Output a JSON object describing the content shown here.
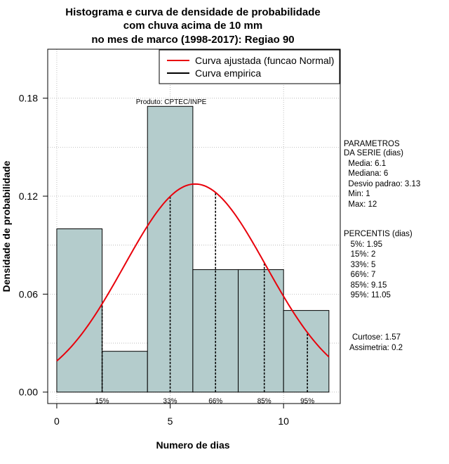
{
  "chart_data": {
    "type": "bar",
    "title_lines": [
      "Histograma e curva de densidade de probabilidade",
      "com chuva acima de 10 mm",
      "no mes de marco (1998-2017): Regiao 90"
    ],
    "xlabel": "Numero de dias",
    "ylabel": "Densidade de probabilidade",
    "xlim": [
      -0.4,
      12.5
    ],
    "ylim": [
      -0.007,
      0.21
    ],
    "x_ticks": [
      {
        "value": 0,
        "label": "0"
      },
      {
        "value": 5,
        "label": "5"
      },
      {
        "value": 10,
        "label": "10"
      }
    ],
    "y_ticks": [
      {
        "value": 0.0,
        "label": "0.00"
      },
      {
        "value": 0.06,
        "label": "0.06"
      },
      {
        "value": 0.12,
        "label": "0.12"
      },
      {
        "value": 0.18,
        "label": "0.18"
      }
    ],
    "grid": true,
    "colors": {
      "bars": "#b4cccc",
      "normal_curve": "#e8000b",
      "empirical": "#000000",
      "grid": "#b0b0b0"
    },
    "bins": [
      {
        "x0": 0,
        "x1": 2,
        "density": 0.1
      },
      {
        "x0": 2,
        "x1": 4,
        "density": 0.025
      },
      {
        "x0": 4,
        "x1": 6,
        "density": 0.175
      },
      {
        "x0": 6,
        "x1": 8,
        "density": 0.075
      },
      {
        "x0": 8,
        "x1": 10,
        "density": 0.075
      },
      {
        "x0": 10,
        "x1": 12,
        "density": 0.05
      }
    ],
    "normal_fit": {
      "mean": 6.1,
      "sd": 3.13,
      "x_range": [
        0,
        12
      ]
    },
    "legend": {
      "position": "top-right",
      "items": [
        {
          "label": "Curva ajustada (funcao Normal)",
          "color": "#e8000b"
        },
        {
          "label": "Curva empirica",
          "color": "#000000"
        }
      ]
    },
    "source_note": "Produto: CPTEC/INPE",
    "percentile_lines": [
      {
        "label": "15%",
        "x": 2
      },
      {
        "label": "33%",
        "x": 5
      },
      {
        "label": "66%",
        "x": 7
      },
      {
        "label": "85%",
        "x": 9.15
      },
      {
        "label": "95%",
        "x": 11.05
      }
    ]
  },
  "side_panel": {
    "parametros": [
      "PARAMETROS",
      "DA SERIE (dias)",
      "  Media: 6.1",
      "  Mediana: 6",
      "  Desvio padrao: 3.13",
      "  Min: 1",
      "  Max: 12"
    ],
    "percentis": [
      "PERCENTIS (dias)",
      "   5%: 1.95",
      "   15%: 2",
      "   33%: 5",
      "   66%: 7",
      "   85%: 9.15",
      "   95%: 11.05"
    ],
    "shape": [
      "Curtose: 1.57",
      "Assimetria: 0.2"
    ]
  }
}
